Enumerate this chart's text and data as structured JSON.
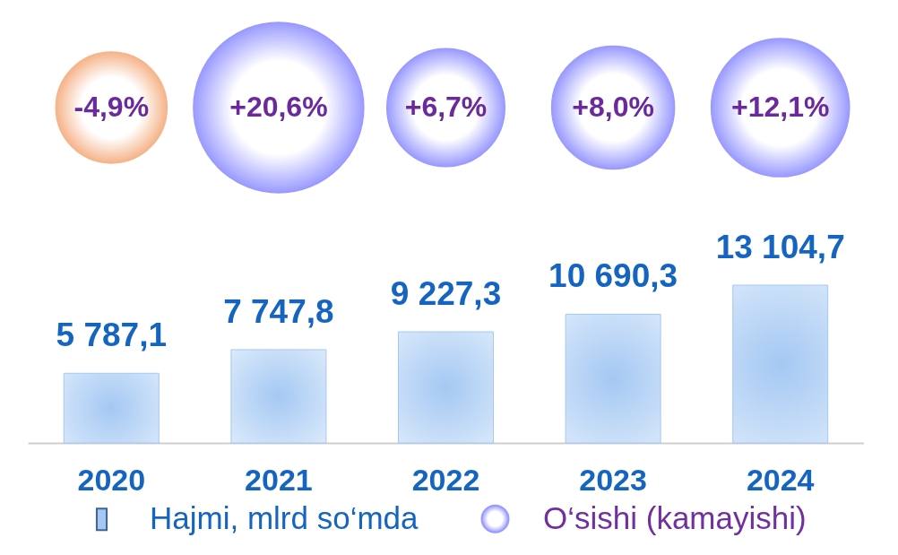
{
  "chart_data": [
    {
      "type": "other",
      "categories": [
        "2020",
        "2021",
        "2022",
        "2023",
        "2024"
      ],
      "series": [
        {
          "name": "O‘sishi (kamayishi)",
          "color": "#9a9aff",
          "colors": [
            "#f5b489",
            "#9a9aff",
            "#9a9aff",
            "#9a9aff",
            "#9a9aff"
          ],
          "values": [
            -4.9,
            20.6,
            6.7,
            8.0,
            12.1
          ],
          "value_labels": [
            "-4,9%",
            "+20,6%",
            "+6,7%",
            "+8,0%",
            "+12,1%"
          ]
        }
      ],
      "legend": "bottom"
    },
    {
      "type": "bar",
      "categories": [
        "2020",
        "2021",
        "2022",
        "2023",
        "2024"
      ],
      "series": [
        {
          "name": "Hajmi, mlrd so‘mda",
          "type": "bar",
          "color": "#a4c8f3",
          "values": [
            5787.1,
            7747.8,
            9227.3,
            10690.3,
            13104.7
          ],
          "value_labels": [
            "5 787,1",
            "7 747,8",
            "9 227,3",
            "10 690,3",
            "13 104,7"
          ]
        }
      ],
      "legend": "bottom"
    }
  ]
}
